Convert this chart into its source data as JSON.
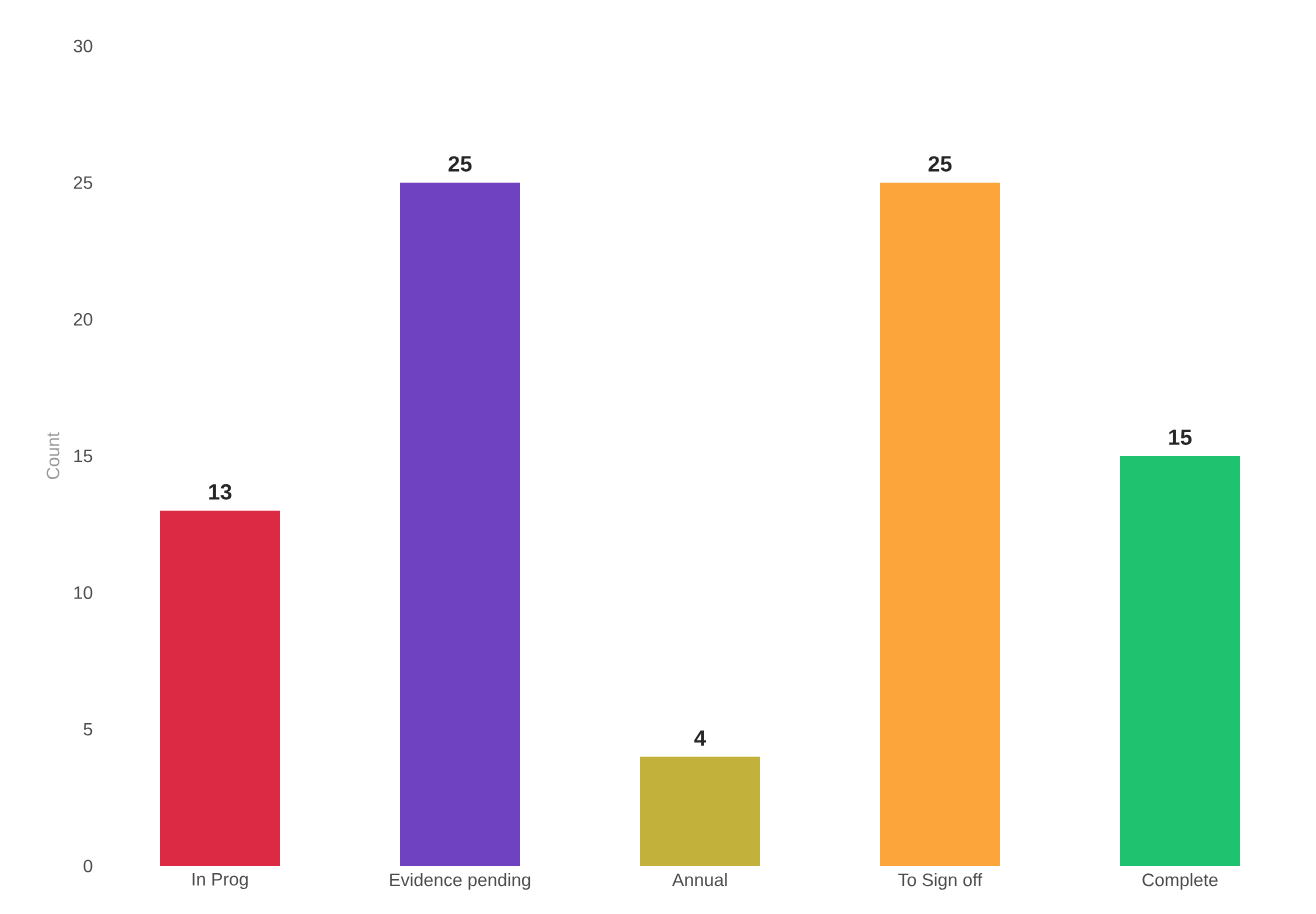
{
  "chart_data": {
    "type": "bar",
    "ylabel": "Count",
    "categories": [
      "In Prog",
      "Evidence pending",
      "Annual",
      "To Sign off",
      "Complete"
    ],
    "values": [
      13,
      25,
      4,
      25,
      15
    ],
    "colors": [
      "#dc2a45",
      "#6f42c1",
      "#c2b23c",
      "#fba53a",
      "#1fc26e"
    ],
    "ylim": [
      0,
      30
    ],
    "yticks": [
      0,
      5,
      10,
      15,
      20,
      25,
      30
    ],
    "data_labels": true
  }
}
